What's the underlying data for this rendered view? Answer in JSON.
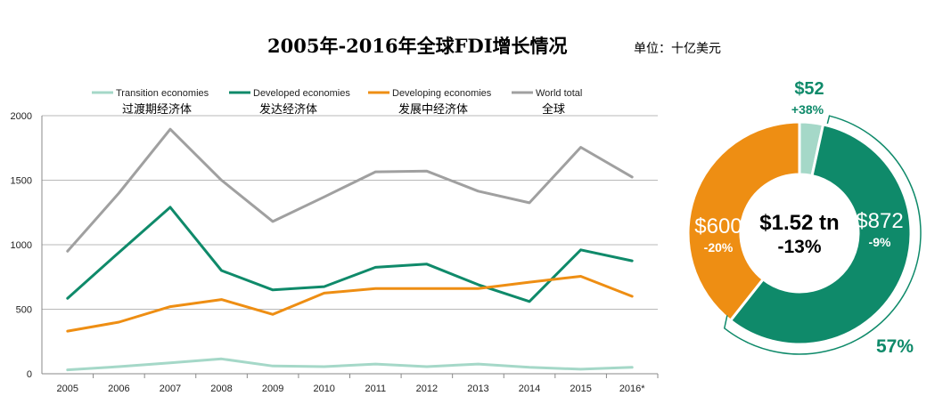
{
  "title": "2005年-2016年全球FDI增长情况",
  "unit": "单位：十亿美元",
  "chart_data": [
    {
      "type": "line",
      "x": [
        "2005",
        "2006",
        "2007",
        "2008",
        "2009",
        "2010",
        "2011",
        "2012",
        "2013",
        "2014",
        "2015",
        "2016*"
      ],
      "ylim": [
        0,
        2000
      ],
      "yticks": [
        "0",
        "500",
        "1000",
        "1500",
        "2000"
      ],
      "grid": true,
      "legend_position": "top",
      "series": [
        {
          "name": "Transition economies",
          "name_zh": "过渡期经济体",
          "color": "#a5d8c8",
          "values": [
            30,
            55,
            85,
            115,
            60,
            55,
            75,
            55,
            75,
            50,
            35,
            50
          ]
        },
        {
          "name": "Developed economies",
          "name_zh": "发达经济体",
          "color": "#0f8a6a",
          "values": [
            585,
            940,
            1290,
            800,
            650,
            675,
            825,
            850,
            690,
            560,
            960,
            875
          ]
        },
        {
          "name": "Developing economies",
          "name_zh": "发展中经济体",
          "color": "#ee8e13",
          "values": [
            330,
            400,
            520,
            575,
            460,
            625,
            660,
            660,
            660,
            710,
            755,
            600
          ]
        },
        {
          "name": "World total",
          "name_zh": "全球",
          "color": "#a0a0a0",
          "values": [
            950,
            1400,
            1895,
            1500,
            1180,
            1370,
            1565,
            1570,
            1415,
            1325,
            1755,
            1525
          ]
        }
      ]
    },
    {
      "type": "pie",
      "donut": true,
      "center_value": "$1.52 tn",
      "center_change": "-13%",
      "slices": [
        {
          "label": "$52",
          "change": "+38%",
          "value": 52,
          "color": "#a5d8c8"
        },
        {
          "label": "$872",
          "change": "-9%",
          "value": 872,
          "color": "#0f8a6a"
        },
        {
          "label": "$600",
          "change": "-20%",
          "value": 600,
          "color": "#ee8e13"
        }
      ],
      "share_label": "57%"
    }
  ]
}
